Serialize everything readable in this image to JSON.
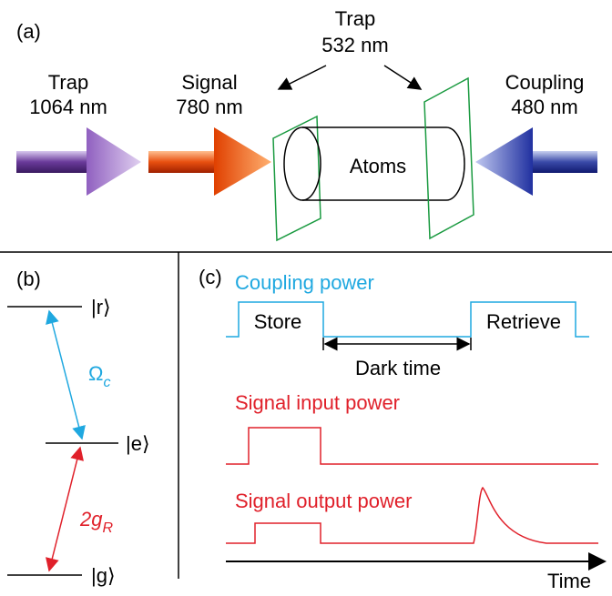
{
  "panel_a": {
    "label": "(a)",
    "beams": [
      {
        "name": "Trap",
        "wavelength": "1064 nm"
      },
      {
        "name": "Signal",
        "wavelength": "780 nm"
      },
      {
        "name": "Trap",
        "wavelength": "532 nm"
      },
      {
        "name": "Coupling",
        "wavelength": "480 nm"
      }
    ],
    "atoms": "Atoms"
  },
  "panel_b": {
    "label": "(b)",
    "levels": [
      "|r⟩",
      "|e⟩",
      "|g⟩"
    ],
    "coupling": {
      "symbol": "Ω",
      "subscript": "c"
    },
    "signal": {
      "symbol": "2g",
      "subscript": "R"
    }
  },
  "panel_c": {
    "label": "(c)",
    "coupling_power": "Coupling power",
    "store": "Store",
    "retrieve": "Retrieve",
    "dark_time": "Dark time",
    "signal_input": "Signal input power",
    "signal_output": "Signal output power",
    "time": "Time"
  }
}
